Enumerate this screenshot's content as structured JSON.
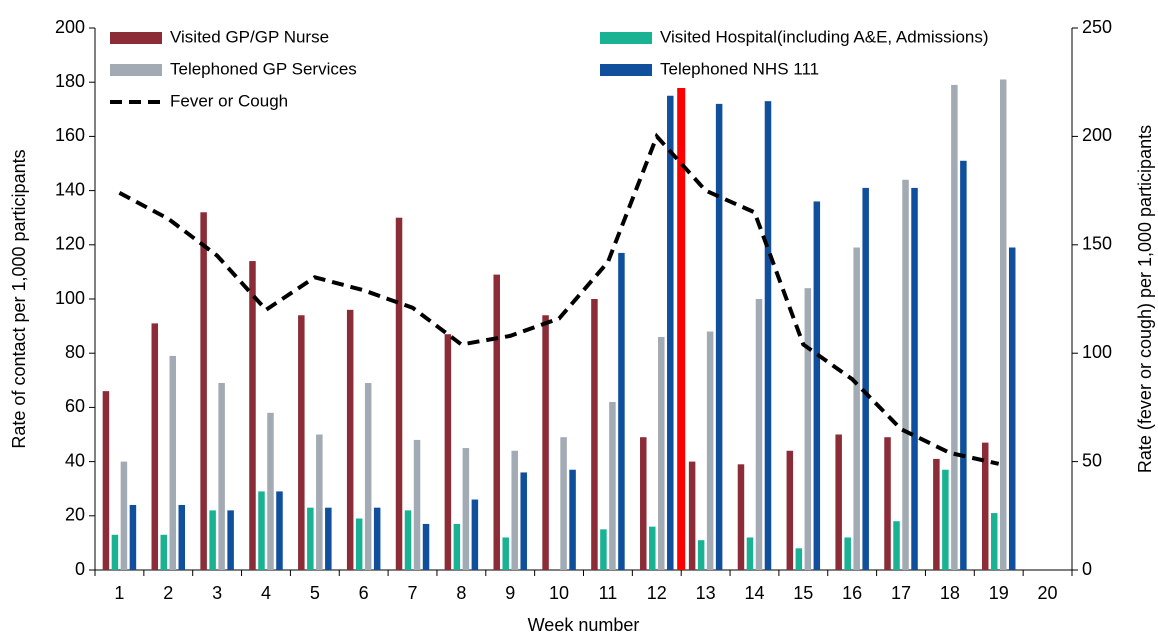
{
  "chart_data": {
    "type": "bar",
    "x_label": "Week number",
    "y_label": "Rate of contact per 1,000 participants",
    "y2_label": "Rate (fever or cough) per 1,000 participants",
    "categories": [
      "1",
      "2",
      "3",
      "4",
      "5",
      "6",
      "7",
      "8",
      "9",
      "10",
      "11",
      "12",
      "13",
      "14",
      "15",
      "16",
      "17",
      "18",
      "19",
      "20"
    ],
    "series": [
      {
        "name": "Visited GP/GP Nurse",
        "type": "bar",
        "color": "#8b2c37",
        "values": [
          66,
          91,
          132,
          114,
          94,
          96,
          130,
          87,
          109,
          94,
          100,
          49,
          40,
          39,
          44,
          50,
          49,
          41,
          47,
          null
        ]
      },
      {
        "name": "Visited Hospital(including A&E, Admissions)",
        "type": "bar",
        "color": "#19b292",
        "values": [
          13,
          13,
          22,
          29,
          23,
          19,
          22,
          17,
          12,
          null,
          15,
          16,
          11,
          12,
          8,
          12,
          18,
          37,
          21,
          null
        ]
      },
      {
        "name": "Telephoned GP Services",
        "type": "bar",
        "color": "#a2aab3",
        "values": [
          40,
          79,
          69,
          58,
          50,
          69,
          48,
          45,
          44,
          49,
          62,
          86,
          88,
          100,
          104,
          119,
          144,
          179,
          181,
          null
        ]
      },
      {
        "name": "Telephoned NHS 111",
        "type": "bar",
        "color": "#0f4f9b",
        "values": [
          24,
          24,
          22,
          29,
          23,
          23,
          17,
          26,
          36,
          37,
          117,
          175,
          172,
          173,
          136,
          141,
          141,
          151,
          119,
          null
        ]
      },
      {
        "name": "Fever or Cough",
        "type": "line",
        "axis": "y2",
        "color": "#000000",
        "dash": true,
        "values": [
          174,
          162,
          145,
          120,
          135,
          129,
          121,
          104,
          108,
          116,
          142,
          200,
          175,
          165,
          104,
          88,
          65,
          54,
          49,
          null
        ]
      }
    ],
    "ylim": [
      0,
      200
    ],
    "yticks": [
      0,
      20,
      40,
      60,
      80,
      100,
      120,
      140,
      160,
      180,
      200
    ],
    "y2lim": [
      0,
      250
    ],
    "y2ticks": [
      0,
      50,
      100,
      150,
      200,
      250
    ],
    "grid": false
  }
}
